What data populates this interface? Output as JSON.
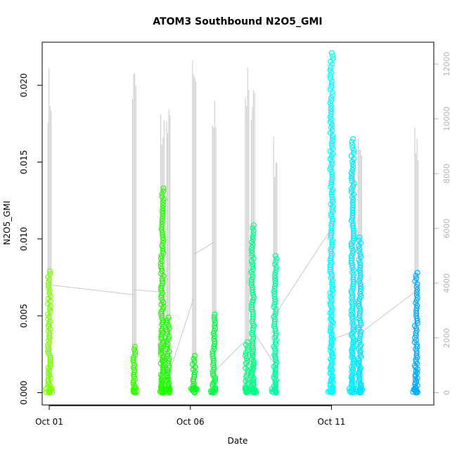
{
  "chart_data": {
    "type": "scatter",
    "title": "ATOM3 Southbound N2O5_GMI",
    "xlabel": "Date",
    "ylabel": "N2O5_GMI",
    "xlim": [
      "2016-09-30T18:00",
      "2016-10-14T15:00"
    ],
    "ylim": [
      -0.0008,
      0.0228
    ],
    "y2lim": [
      -450,
      12800
    ],
    "grid": false,
    "legend": "none",
    "x_ticks": [
      {
        "value": "2016-10-01T00:00",
        "label": "Oct 01"
      },
      {
        "value": "2016-10-06T00:00",
        "label": "Oct 06"
      },
      {
        "value": "2016-10-11T00:00",
        "label": "Oct 11"
      }
    ],
    "y_ticks": [
      {
        "value": 0.0,
        "label": "0.000"
      },
      {
        "value": 0.005,
        "label": "0.005"
      },
      {
        "value": 0.01,
        "label": "0.010"
      },
      {
        "value": 0.015,
        "label": "0.015"
      },
      {
        "value": 0.02,
        "label": "0.020"
      }
    ],
    "y2_ticks": [
      {
        "value": 0,
        "label": "0"
      },
      {
        "value": 2000,
        "label": "2000"
      },
      {
        "value": 4000,
        "label": "4000"
      },
      {
        "value": 6000,
        "label": "6000"
      },
      {
        "value": 8000,
        "label": "8000"
      },
      {
        "value": 10000,
        "label": "10000"
      },
      {
        "value": 12000,
        "label": "12000"
      }
    ],
    "colors": {
      "altitude_line": "#c8c8c8",
      "right_axis": "#b3b3b3"
    },
    "series": [
      {
        "x": "2016-10-01T00:00",
        "ymin": 0.0,
        "ymax": 0.0079,
        "color": "#7fff00",
        "alt_max": 12000
      },
      {
        "x": "2016-10-04T00:00",
        "ymin": 0.0,
        "ymax": 0.003,
        "color": "#33ff00",
        "alt_max": 12200
      },
      {
        "x": "2016-10-05T00:00",
        "ymin": 0.0,
        "ymax": 0.0133,
        "color": "#22ff00",
        "alt_max": 10500
      },
      {
        "x": "2016-10-05T05:00",
        "ymin": 0.0,
        "ymax": 0.0049,
        "color": "#1aff00",
        "alt_max": 10500
      },
      {
        "x": "2016-10-06T03:00",
        "ymin": 0.0,
        "ymax": 0.0024,
        "color": "#00ff1a",
        "alt_max": 12300
      },
      {
        "x": "2016-10-06T20:00",
        "ymin": 0.0,
        "ymax": 0.0051,
        "color": "#00ff40",
        "alt_max": 11000
      },
      {
        "x": "2016-10-08T00:00",
        "ymin": 0.0,
        "ymax": 0.0033,
        "color": "#00ff80",
        "alt_max": 12000
      },
      {
        "x": "2016-10-08T05:00",
        "ymin": 0.0,
        "ymax": 0.0109,
        "color": "#00ff88",
        "alt_max": 12000
      },
      {
        "x": "2016-10-09T00:00",
        "ymin": 0.0,
        "ymax": 0.0089,
        "color": "#00ffa0",
        "alt_max": 9500
      },
      {
        "x": "2016-10-11T00:00",
        "ymin": 0.0,
        "ymax": 0.0221,
        "color": "#00ffff",
        "alt_max": 11800
      },
      {
        "x": "2016-10-11T18:00",
        "ymin": 0.0,
        "ymax": 0.0165,
        "color": "#00f0ff",
        "alt_max": 9500
      },
      {
        "x": "2016-10-12T00:00",
        "ymin": 0.0,
        "ymax": 0.0101,
        "color": "#00e5ff",
        "alt_max": 9500
      },
      {
        "x": "2016-10-14T00:00",
        "ymin": 0.0,
        "ymax": 0.0078,
        "color": "#00aaff",
        "alt_max": 9800
      }
    ]
  }
}
